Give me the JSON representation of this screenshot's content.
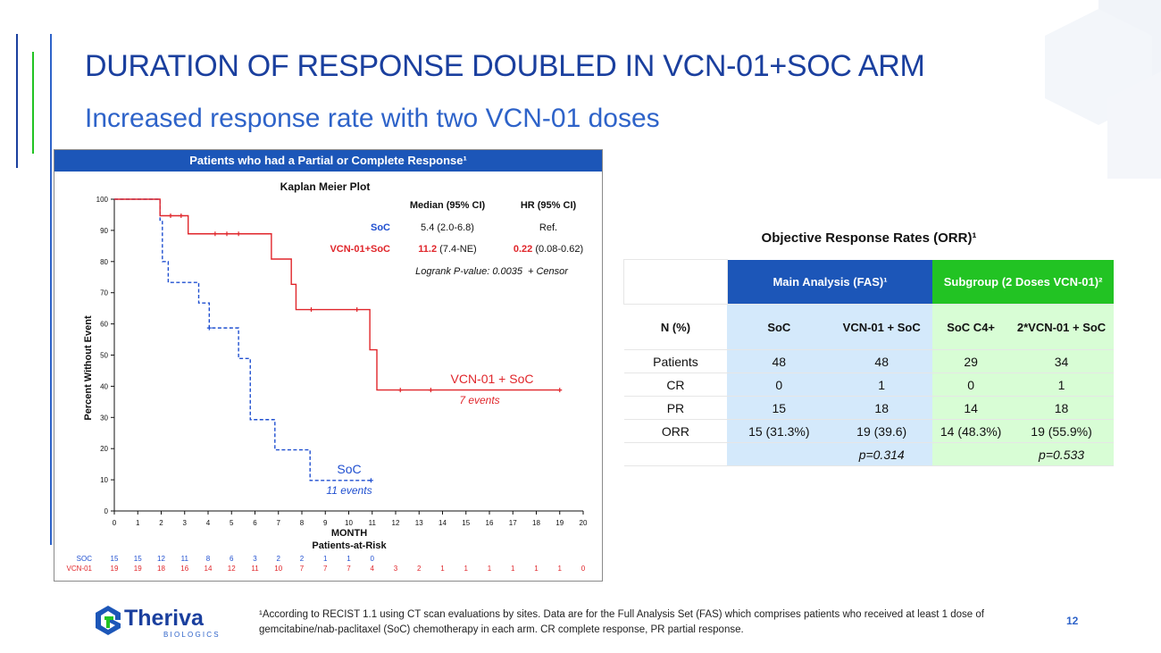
{
  "slide": {
    "title": "DURATION OF RESPONSE DOUBLED IN VCN-01+SOC ARM",
    "subtitle": "Increased response rate with two VCN-01 doses",
    "page_number": "12",
    "footnote": "¹According to RECIST 1.1 using CT scan evaluations by sites. Data are for the Full Analysis Set (FAS) which comprises patients who received at least 1 dose of gemcitabine/nab-paclitaxel (SoC) chemotherapy in each arm. CR complete response, PR partial response."
  },
  "logo": {
    "name": "Theriva",
    "tagline": "BIOLOGICS"
  },
  "colors": {
    "brand_blue": "#1c56b8",
    "title_blue": "#1a3f9e",
    "soc_blue": "#1f4fd0",
    "vcn_red": "#e0262b",
    "green": "#22c323"
  },
  "km_panel": {
    "header": "Patients who had a Partial or Complete Response¹"
  },
  "chart_data": {
    "type": "line",
    "title": "Kaplan Meier Plot",
    "xlabel": "MONTH",
    "ylabel": "Percent Without Event",
    "xlim": [
      0,
      20
    ],
    "ylim": [
      0,
      100
    ],
    "xticks": [
      0,
      1,
      2,
      3,
      4,
      5,
      6,
      7,
      8,
      9,
      10,
      11,
      12,
      13,
      14,
      15,
      16,
      17,
      18,
      19,
      20
    ],
    "yticks": [
      0,
      10,
      20,
      30,
      40,
      50,
      60,
      70,
      80,
      90,
      100
    ],
    "series": [
      {
        "name": "SoC",
        "label": "SoC",
        "events_label": "11 events",
        "color": "#1f4fd0",
        "style": "dashed",
        "steps": [
          [
            0,
            100
          ],
          [
            1.95,
            93.3
          ],
          [
            2.05,
            80
          ],
          [
            2.3,
            73.3
          ],
          [
            3.6,
            66.7
          ],
          [
            4.05,
            58.7
          ],
          [
            5.3,
            48.9
          ],
          [
            5.8,
            29.3
          ],
          [
            6.85,
            19.6
          ],
          [
            8.35,
            9.8
          ],
          [
            10.95,
            9.8
          ]
        ],
        "censors": [
          [
            4.05,
            58.7
          ],
          [
            10.95,
            9.8
          ]
        ]
      },
      {
        "name": "VCN-01 + SoC",
        "label": "VCN-01 + SoC",
        "events_label": "7 events",
        "color": "#e0262b",
        "style": "solid",
        "steps": [
          [
            0,
            100
          ],
          [
            1.95,
            94.7
          ],
          [
            3.15,
            88.9
          ],
          [
            6.7,
            80.8
          ],
          [
            7.55,
            72.7
          ],
          [
            7.75,
            64.6
          ],
          [
            10.9,
            51.7
          ],
          [
            11.2,
            38.8
          ],
          [
            19.0,
            38.8
          ]
        ],
        "censors": [
          [
            2.4,
            94.7
          ],
          [
            2.85,
            94.7
          ],
          [
            4.3,
            88.9
          ],
          [
            4.8,
            88.9
          ],
          [
            5.3,
            88.9
          ],
          [
            8.4,
            64.6
          ],
          [
            10.35,
            64.6
          ],
          [
            12.2,
            38.8
          ],
          [
            13.5,
            38.8
          ],
          [
            19.0,
            38.8
          ]
        ]
      }
    ],
    "stats_table": {
      "header_median": "Median (95% CI)",
      "header_hr": "HR (95% CI)",
      "rows": [
        {
          "arm": "SoC",
          "median": "5.4 (2.0-6.8)",
          "median_bold": "",
          "median_rest": "",
          "hr": "Ref.",
          "hr_bold": "",
          "hr_rest": ""
        },
        {
          "arm": "VCN-01+SoC",
          "median": "",
          "median_bold": "11.2",
          "median_rest": " (7.4-NE)",
          "hr": "",
          "hr_bold": "0.22",
          "hr_rest": " (0.08-0.62)"
        }
      ],
      "logrank": "Logrank P-value:  0.0035",
      "censor_label": "+ Censor"
    },
    "at_risk": {
      "title": "Patients-at-Risk",
      "rows": [
        {
          "label": "SOC",
          "color": "#1f4fd0",
          "values": [
            "15",
            "15",
            "12",
            "11",
            "8",
            "6",
            "3",
            "2",
            "2",
            "1",
            "1",
            "0"
          ]
        },
        {
          "label": "VCN-01",
          "color": "#e0262b",
          "values": [
            "19",
            "19",
            "18",
            "16",
            "14",
            "12",
            "11",
            "10",
            "7",
            "7",
            "7",
            "4",
            "3",
            "2",
            "1",
            "1",
            "1",
            "1",
            "1",
            "1",
            "0"
          ]
        }
      ]
    }
  },
  "orr": {
    "title": "Objective Response Rates (ORR)¹",
    "group_main": "Main Analysis (FAS)¹",
    "group_sub": "Subgroup (2 Doses VCN-01)²",
    "col_header_label": "N (%)",
    "columns": [
      "SoC",
      "VCN-01 + SoC",
      "SoC C4+",
      "2*VCN-01 + SoC"
    ],
    "rows": [
      {
        "label": "Patients",
        "values": [
          "48",
          "48",
          "29",
          "34"
        ]
      },
      {
        "label": "CR",
        "values": [
          "0",
          "1",
          "0",
          "1"
        ]
      },
      {
        "label": "PR",
        "values": [
          "15",
          "18",
          "14",
          "18"
        ]
      },
      {
        "label": "ORR",
        "values": [
          "15 (31.3%)",
          "19 (39.6)",
          "14 (48.3%)",
          "19 (55.9%)"
        ]
      }
    ],
    "pvalues": [
      "p=0.314",
      "p=0.533"
    ]
  }
}
